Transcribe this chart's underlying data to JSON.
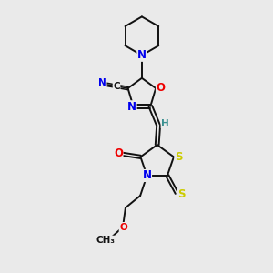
{
  "bg_color": "#eaeaea",
  "atom_colors": {
    "N": "#0000ee",
    "O": "#ee0000",
    "S": "#cccc00",
    "C": "#111111",
    "H": "#3a9090"
  },
  "bond_color": "#111111",
  "figsize": [
    3.0,
    3.0
  ],
  "dpi": 100,
  "lw": 1.4,
  "fs": 8.5,
  "fs_small": 7.5
}
